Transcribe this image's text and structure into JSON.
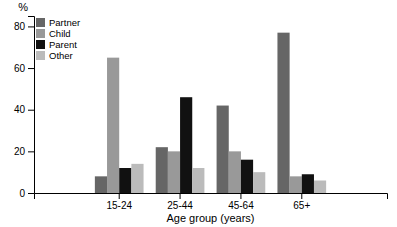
{
  "chart_data": {
    "type": "bar",
    "categories": [
      "15-24",
      "25-44",
      "45-64",
      "65+"
    ],
    "series": [
      {
        "name": "Partner",
        "color": "#666666",
        "values": [
          8,
          22,
          42,
          77
        ]
      },
      {
        "name": "Child",
        "color": "#999999",
        "values": [
          65,
          20,
          20,
          8
        ]
      },
      {
        "name": "Parent",
        "color": "#111111",
        "values": [
          12,
          46,
          16,
          9
        ]
      },
      {
        "name": "Other",
        "color": "#bbbbbb",
        "values": [
          14,
          12,
          10,
          6
        ]
      }
    ],
    "xlabel": "Age group (years)",
    "ylabel": "%",
    "ylim": [
      0,
      85
    ],
    "yticks": [
      0,
      20,
      40,
      60,
      80
    ],
    "legend": "upper left",
    "grid": false
  }
}
